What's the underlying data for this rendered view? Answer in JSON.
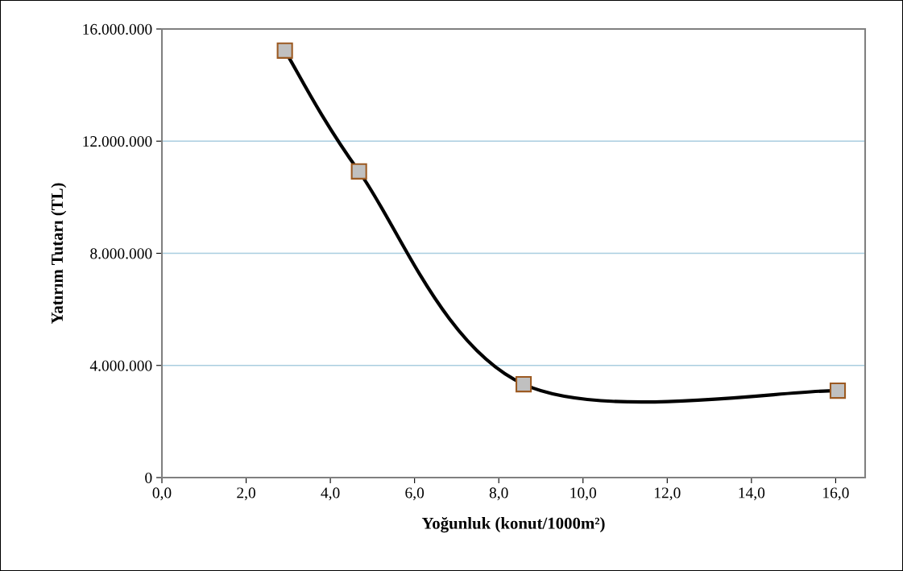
{
  "chart_data": {
    "type": "line",
    "xlabel": "Yoğunluk (konut/1000m²)",
    "ylabel": "Yatırım Tutarı (TL)",
    "x": [
      2.92,
      4.68,
      8.59,
      16.05
    ],
    "series": [
      {
        "color": "#000000",
        "values": [
          15230000,
          10920000,
          3330000,
          3100000
        ]
      }
    ],
    "xlim": [
      0,
      16.7
    ],
    "xticks": [
      {
        "value": 0,
        "label": "0,0"
      },
      {
        "value": 2,
        "label": "2,0"
      },
      {
        "value": 4,
        "label": "4,0"
      },
      {
        "value": 6,
        "label": "6,0"
      },
      {
        "value": 8,
        "label": "8,0"
      },
      {
        "value": 10,
        "label": "10,0"
      },
      {
        "value": 12,
        "label": "12,0"
      },
      {
        "value": 14,
        "label": "14,0"
      },
      {
        "value": 16,
        "label": "16,0"
      }
    ],
    "ylim": [
      0,
      16000000
    ],
    "yticks": [
      0,
      {
        "value": 4000000,
        "label": "4.000.000"
      },
      {
        "value": 8000000,
        "label": "8.000.000"
      },
      {
        "value": 12000000,
        "label": "12.000.000"
      },
      {
        "value": 16000000,
        "label": "16.000.000"
      }
    ],
    "grid": "y",
    "marker": "square",
    "line_style": "solid"
  }
}
